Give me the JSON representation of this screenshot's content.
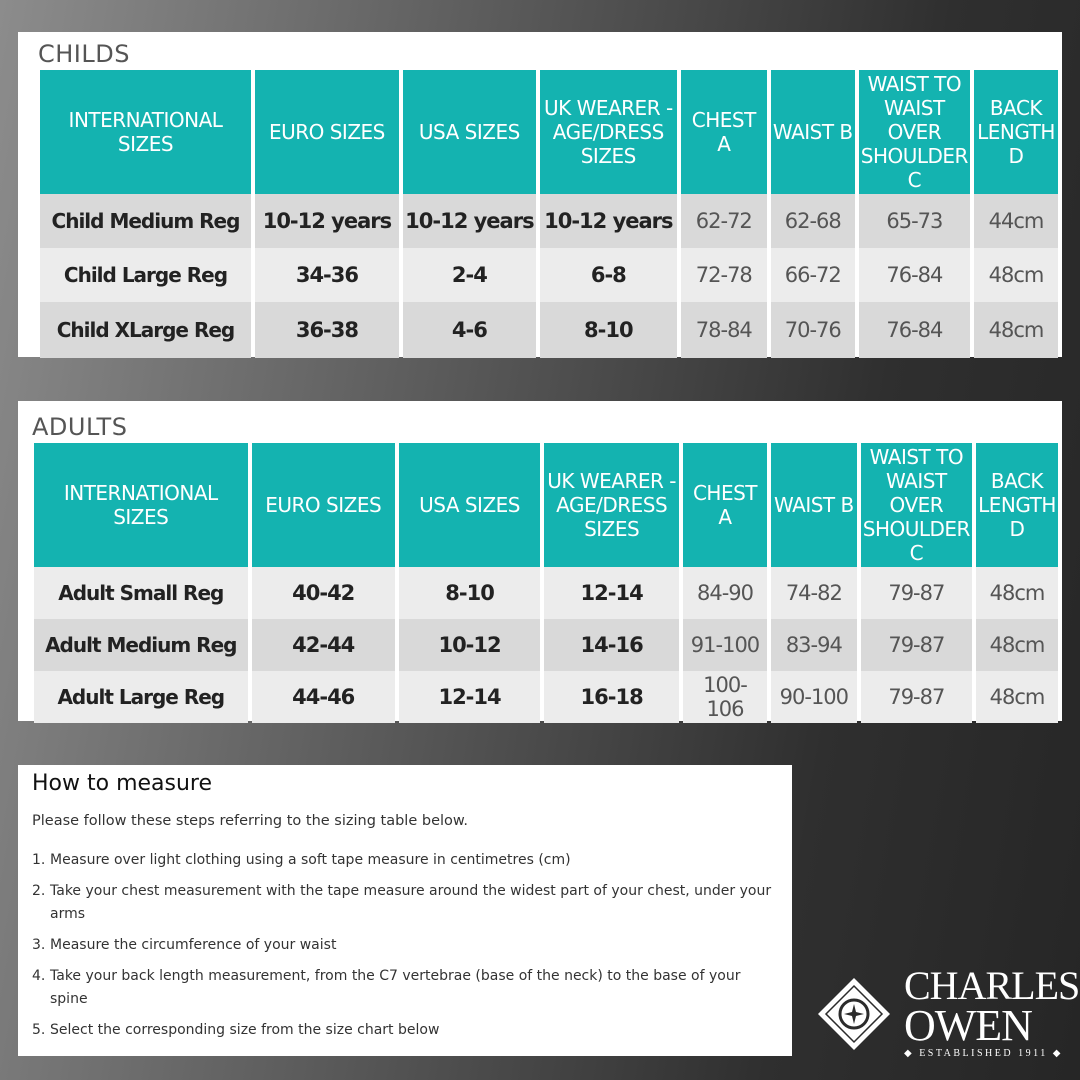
{
  "childs": {
    "title": "CHILDS",
    "headers": [
      "INTERNATIONAL SIZES",
      "EURO SIZES",
      "USA SIZES",
      "UK WEARER - AGE/DRESS SIZES",
      "CHEST A",
      "WAIST B",
      "WAIST TO WAIST OVER SHOULDER C",
      "BACK LENGTH D"
    ],
    "rows": [
      [
        "Child Medium Reg",
        "10-12 years",
        "10-12 years",
        "10-12 years",
        "62-72",
        "62-68",
        "65-73",
        "44cm"
      ],
      [
        "Child Large Reg",
        "34-36",
        "2-4",
        "6-8",
        "72-78",
        "66-72",
        "76-84",
        "48cm"
      ],
      [
        "Child XLarge Reg",
        "36-38",
        "4-6",
        "8-10",
        "78-84",
        "70-76",
        "76-84",
        "48cm"
      ]
    ]
  },
  "adults": {
    "title": "ADULTS",
    "headers": [
      "INTERNATIONAL SIZES",
      "EURO SIZES",
      "USA SIZES",
      "UK WEARER - AGE/DRESS SIZES",
      "CHEST A",
      "WAIST B",
      "WAIST TO WAIST OVER SHOULDER C",
      "BACK LENGTH D"
    ],
    "rows": [
      [
        "Adult Small Reg",
        "40-42",
        "8-10",
        "12-14",
        "84-90",
        "74-82",
        "79-87",
        "48cm"
      ],
      [
        "Adult Medium Reg",
        "42-44",
        "10-12",
        "14-16",
        "91-100",
        "83-94",
        "79-87",
        "48cm"
      ],
      [
        "Adult Large Reg",
        "44-46",
        "12-14",
        "16-18",
        "100-106",
        "90-100",
        "79-87",
        "48cm"
      ]
    ]
  },
  "measure": {
    "title": "How to measure",
    "intro": "Please follow these steps referring to the sizing table below.",
    "steps": [
      {
        "num": "1.",
        "text": "Measure over light clothing using a soft tape measure in centimetres (cm)"
      },
      {
        "num": "2.",
        "text": "Take your chest measurement with the tape measure around the widest part of your chest, under your arms"
      },
      {
        "num": "3.",
        "text": "Measure the circumference of your waist"
      },
      {
        "num": "4.",
        "text": "Take your back length measurement, from the C7 vertebrae (base of the neck) to the base of your spine"
      },
      {
        "num": "5.",
        "text": "Select the corresponding size from the size chart below"
      }
    ]
  },
  "logo": {
    "line1": "CHARLES",
    "line2": "OWEN",
    "tagline": "◆ ESTABLISHED 1911 ◆",
    "icon": "diamond-star-logo-icon"
  },
  "colors": {
    "header_teal": "#14b3b0",
    "row_dark": "#d9d9d9",
    "row_light": "#ececec"
  }
}
